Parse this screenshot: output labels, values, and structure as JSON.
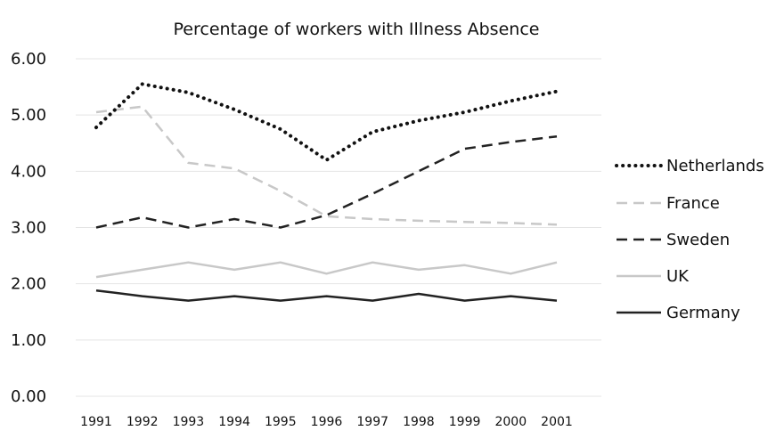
{
  "chart_data": {
    "type": "line",
    "title": "Percentage of workers with Illness Absence",
    "xlabel": "",
    "ylabel": "",
    "x": [
      "1991",
      "1992",
      "1993",
      "1994",
      "1995",
      "1996",
      "1997",
      "1998",
      "1999",
      "2000",
      "2001"
    ],
    "yticks": [
      "0.00",
      "1.00",
      "2.00",
      "3.00",
      "4.00",
      "5.00",
      "6.00"
    ],
    "ylim": [
      0,
      6
    ],
    "grid": true,
    "legend": "right",
    "series": [
      {
        "name": "Netherlands",
        "values": [
          4.78,
          5.55,
          5.4,
          5.1,
          4.75,
          4.2,
          4.7,
          4.9,
          5.05,
          5.25,
          5.42
        ],
        "color": "#111111",
        "style": "dotted"
      },
      {
        "name": "France",
        "values": [
          5.05,
          5.15,
          4.15,
          4.05,
          3.65,
          3.2,
          3.15,
          3.12,
          3.1,
          3.08,
          3.05
        ],
        "color": "#c8c8c8",
        "style": "dashed"
      },
      {
        "name": "Sweden",
        "values": [
          3.0,
          3.18,
          3.0,
          3.15,
          3.0,
          3.22,
          3.6,
          4.0,
          4.4,
          4.52,
          4.62
        ],
        "color": "#222222",
        "style": "dashed"
      },
      {
        "name": "UK",
        "values": [
          2.12,
          2.25,
          2.38,
          2.25,
          2.38,
          2.18,
          2.38,
          2.25,
          2.33,
          2.18,
          2.38
        ],
        "color": "#c8c8c8",
        "style": "solid"
      },
      {
        "name": "Germany",
        "values": [
          1.88,
          1.78,
          1.7,
          1.78,
          1.7,
          1.78,
          1.7,
          1.82,
          1.7,
          1.78,
          1.7
        ],
        "color": "#222222",
        "style": "solid"
      }
    ]
  }
}
